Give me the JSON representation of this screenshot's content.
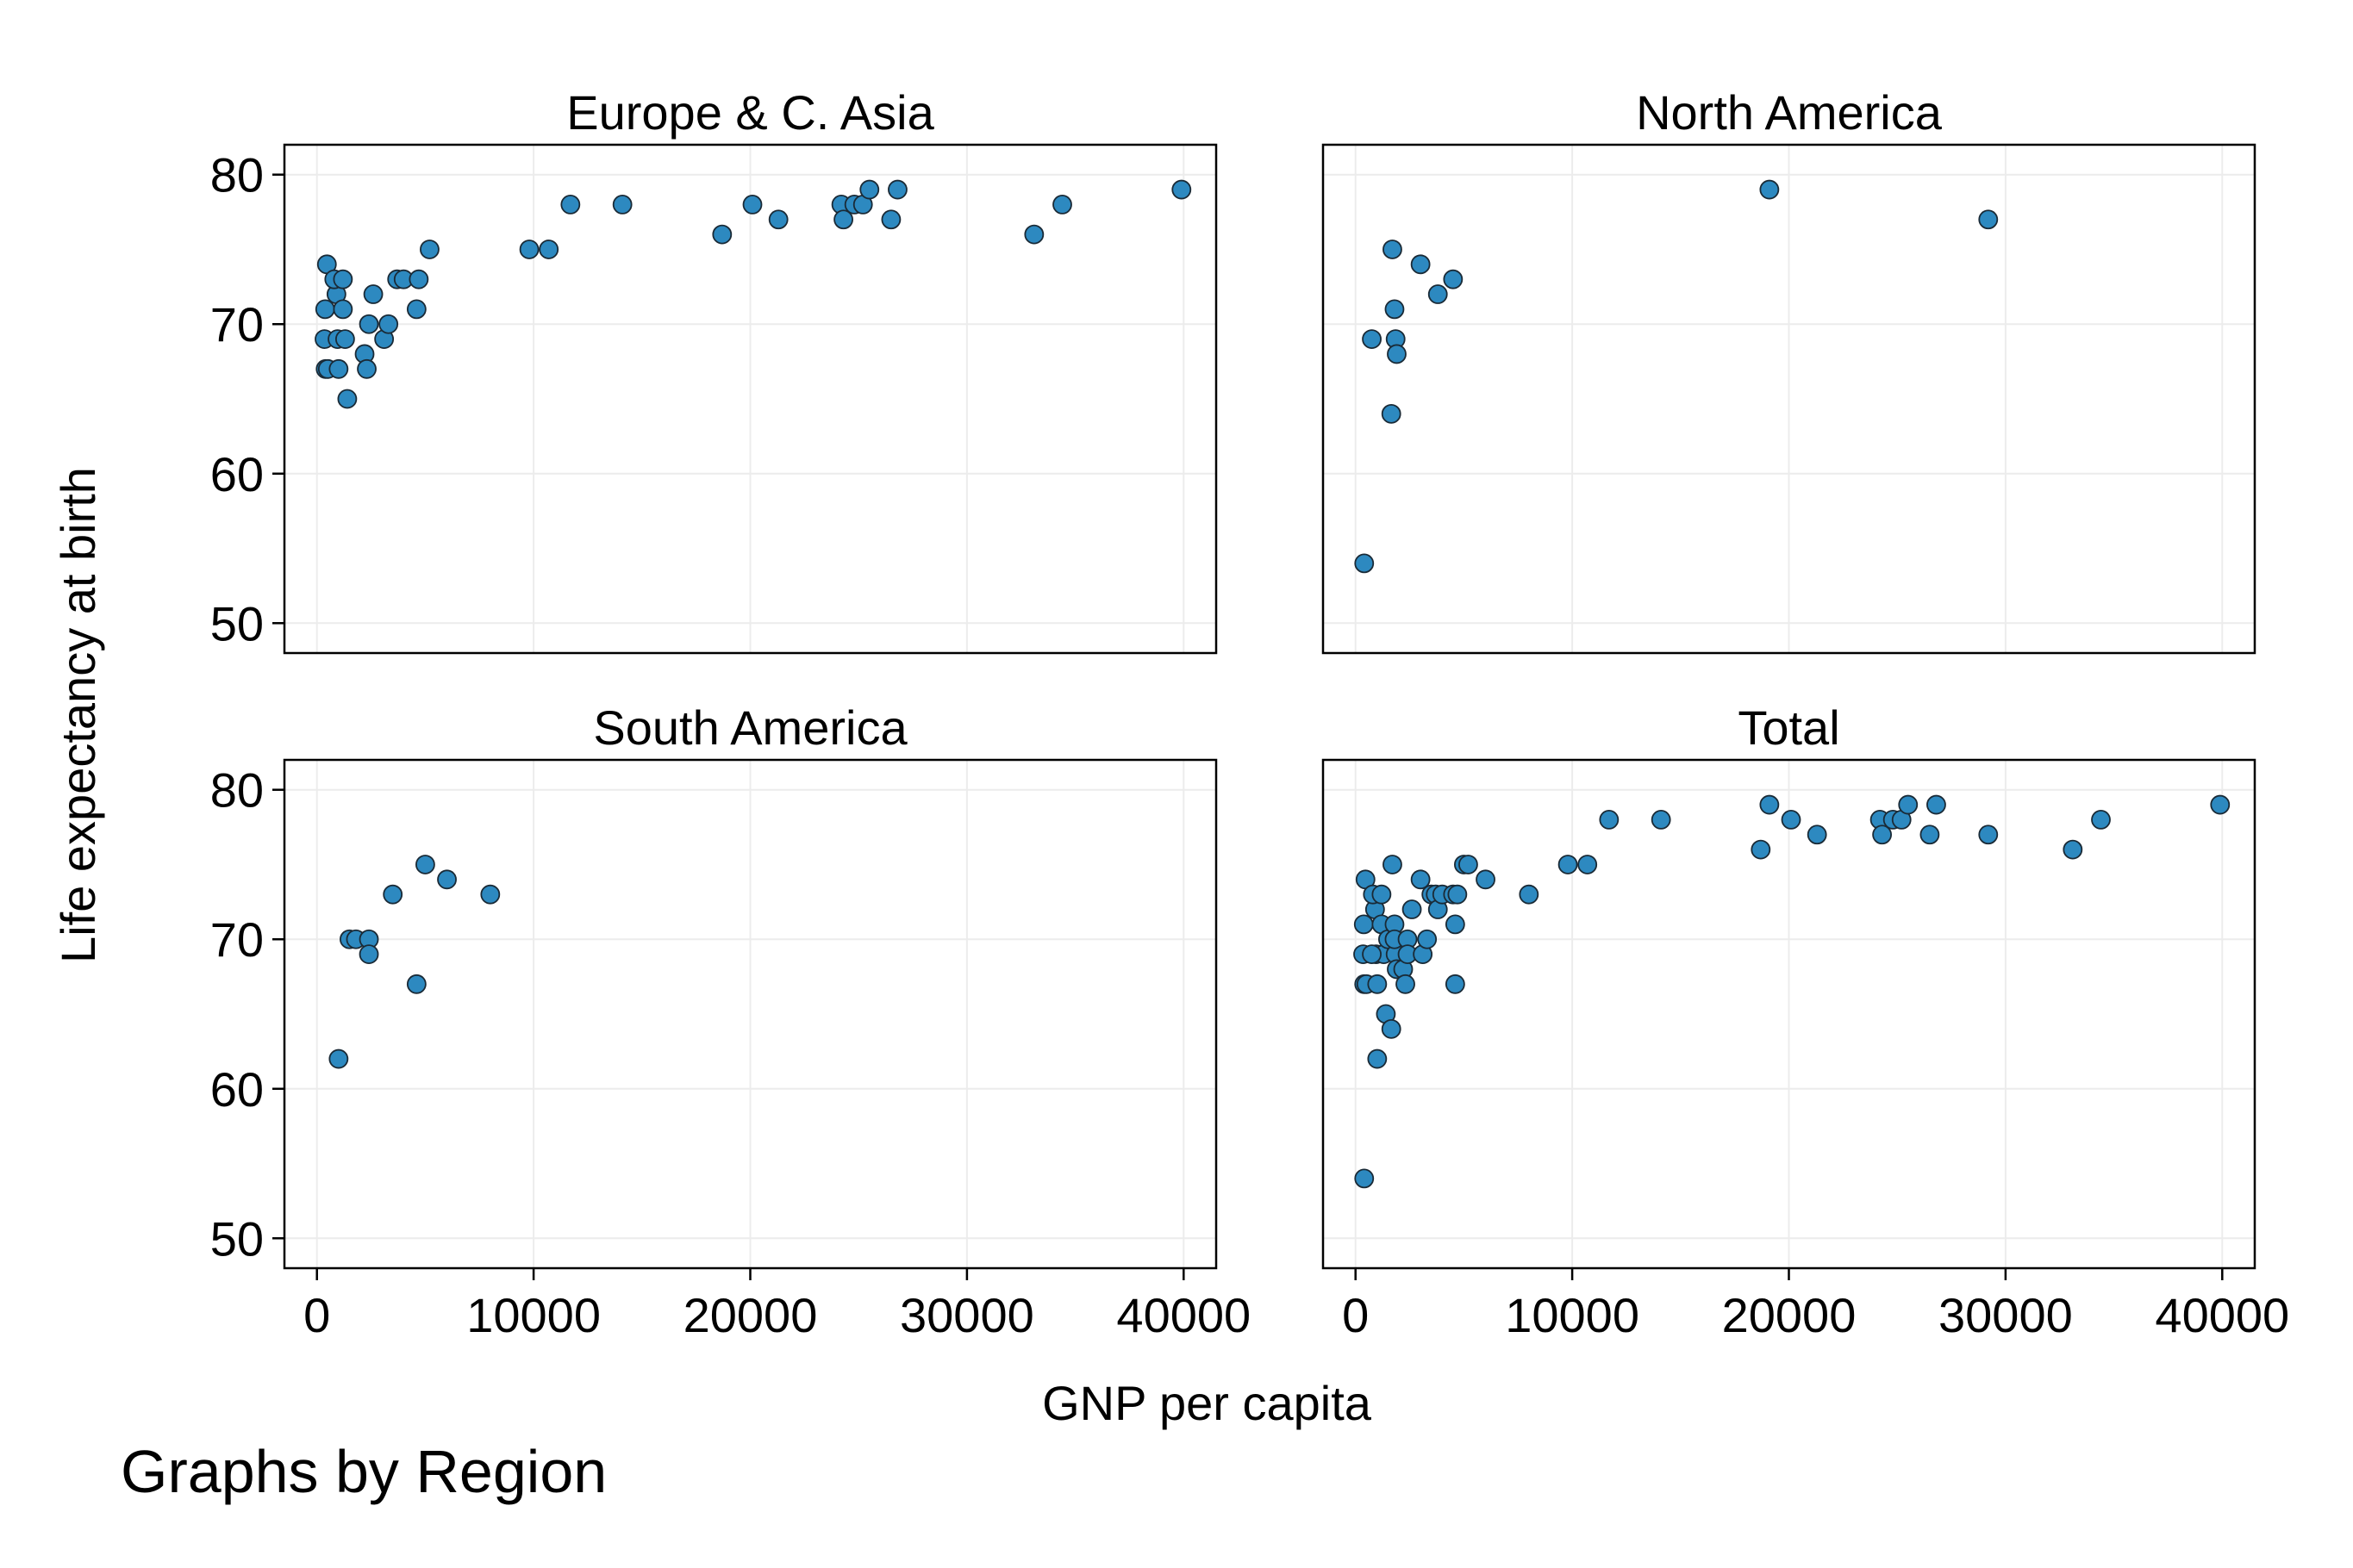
{
  "chart_data": {
    "type": "scatter",
    "title": "",
    "xlabel": "GNP per capita",
    "ylabel": "Life expectancy at birth",
    "note": "Graphs by Region",
    "xlim": [
      -1500,
      41500
    ],
    "ylim": [
      48,
      82
    ],
    "xticks": [
      0,
      10000,
      20000,
      30000,
      40000
    ],
    "yticks": [
      50,
      60,
      70,
      80
    ],
    "grid": true,
    "marker_color": "#2d89c0",
    "marker_edge": "#1a2a36",
    "panels": [
      {
        "title": "Europe & C. Asia",
        "points": [
          [
            460,
            74
          ],
          [
            380,
            71
          ],
          [
            350,
            69
          ],
          [
            400,
            67
          ],
          [
            500,
            67
          ],
          [
            900,
            72
          ],
          [
            800,
            73
          ],
          [
            950,
            69
          ],
          [
            1000,
            67
          ],
          [
            1200,
            73
          ],
          [
            1200,
            71
          ],
          [
            1300,
            69
          ],
          [
            1400,
            65
          ],
          [
            2200,
            68
          ],
          [
            2300,
            67
          ],
          [
            2400,
            70
          ],
          [
            2600,
            72
          ],
          [
            3100,
            69
          ],
          [
            3300,
            70
          ],
          [
            3700,
            73
          ],
          [
            4000,
            73
          ],
          [
            4600,
            71
          ],
          [
            4700,
            73
          ],
          [
            5200,
            75
          ],
          [
            9800,
            75
          ],
          [
            10700,
            75
          ],
          [
            11700,
            78
          ],
          [
            14100,
            78
          ],
          [
            18700,
            76
          ],
          [
            20100,
            78
          ],
          [
            21300,
            77
          ],
          [
            24200,
            78
          ],
          [
            24300,
            77
          ],
          [
            24800,
            78
          ],
          [
            25200,
            78
          ],
          [
            25500,
            79
          ],
          [
            26500,
            77
          ],
          [
            26800,
            79
          ],
          [
            33100,
            76
          ],
          [
            34400,
            78
          ],
          [
            39900,
            79
          ]
        ]
      },
      {
        "title": "North America",
        "points": [
          [
            400,
            54
          ],
          [
            750,
            69
          ],
          [
            1650,
            64
          ],
          [
            1700,
            75
          ],
          [
            1800,
            71
          ],
          [
            1850,
            69
          ],
          [
            1900,
            68
          ],
          [
            3000,
            74
          ],
          [
            3800,
            72
          ],
          [
            4500,
            73
          ],
          [
            19100,
            79
          ],
          [
            29200,
            77
          ]
        ]
      },
      {
        "title": "South America",
        "points": [
          [
            1000,
            62
          ],
          [
            1500,
            70
          ],
          [
            1800,
            70
          ],
          [
            2400,
            70
          ],
          [
            2400,
            69
          ],
          [
            3500,
            73
          ],
          [
            4600,
            67
          ],
          [
            5000,
            75
          ],
          [
            6000,
            74
          ],
          [
            8000,
            73
          ]
        ]
      },
      {
        "title": "Total",
        "points": [
          [
            400,
            54
          ],
          [
            460,
            74
          ],
          [
            380,
            71
          ],
          [
            350,
            69
          ],
          [
            400,
            67
          ],
          [
            500,
            67
          ],
          [
            900,
            72
          ],
          [
            800,
            73
          ],
          [
            950,
            69
          ],
          [
            1000,
            67
          ],
          [
            1000,
            62
          ],
          [
            1200,
            73
          ],
          [
            1200,
            71
          ],
          [
            1300,
            69
          ],
          [
            1400,
            65
          ],
          [
            1500,
            70
          ],
          [
            750,
            69
          ],
          [
            1650,
            64
          ],
          [
            1700,
            75
          ],
          [
            1800,
            71
          ],
          [
            1850,
            69
          ],
          [
            1900,
            68
          ],
          [
            1800,
            70
          ],
          [
            2200,
            68
          ],
          [
            2300,
            67
          ],
          [
            2400,
            70
          ],
          [
            2400,
            69
          ],
          [
            2600,
            72
          ],
          [
            3000,
            74
          ],
          [
            3100,
            69
          ],
          [
            3300,
            70
          ],
          [
            3500,
            73
          ],
          [
            3700,
            73
          ],
          [
            3800,
            72
          ],
          [
            4000,
            73
          ],
          [
            4500,
            73
          ],
          [
            4600,
            71
          ],
          [
            4600,
            67
          ],
          [
            4700,
            73
          ],
          [
            5000,
            75
          ],
          [
            5200,
            75
          ],
          [
            6000,
            74
          ],
          [
            8000,
            73
          ],
          [
            9800,
            75
          ],
          [
            10700,
            75
          ],
          [
            11700,
            78
          ],
          [
            14100,
            78
          ],
          [
            18700,
            76
          ],
          [
            19100,
            79
          ],
          [
            20100,
            78
          ],
          [
            21300,
            77
          ],
          [
            24200,
            78
          ],
          [
            24300,
            77
          ],
          [
            24800,
            78
          ],
          [
            25200,
            78
          ],
          [
            25500,
            79
          ],
          [
            26500,
            77
          ],
          [
            26800,
            79
          ],
          [
            29200,
            77
          ],
          [
            33100,
            76
          ],
          [
            34400,
            78
          ],
          [
            39900,
            79
          ]
        ]
      }
    ]
  }
}
